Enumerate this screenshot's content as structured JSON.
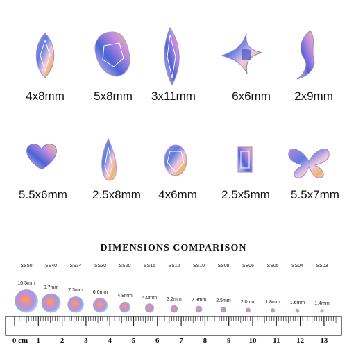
{
  "gems_row1": [
    {
      "shape": "navette-icon",
      "label": "4x8mm"
    },
    {
      "shape": "pear-icon",
      "label": "5x8mm"
    },
    {
      "shape": "long-navette-icon",
      "label": "3x11mm"
    },
    {
      "shape": "star-icon",
      "label": "6x6mm"
    },
    {
      "shape": "wave-icon",
      "label": "2x9mm"
    }
  ],
  "gems_row2": [
    {
      "shape": "heart-icon",
      "label": "5.5x6mm"
    },
    {
      "shape": "teardrop-icon",
      "label": "2.5x8mm"
    },
    {
      "shape": "oval-icon",
      "label": "4x6mm"
    },
    {
      "shape": "baguette-icon",
      "label": "2.5x5mm"
    },
    {
      "shape": "butterfly-icon",
      "label": "5.5x7mm"
    }
  ],
  "comparison": {
    "title": "DIMENSIONS COMPARISON",
    "ss_sizes": [
      "SS50",
      "SS40",
      "SS34",
      "SS30",
      "SS20",
      "SS16",
      "SS12",
      "SS10",
      "SS08",
      "SS06",
      "SS05",
      "SS04",
      "SS03"
    ],
    "mm_sizes": [
      "10.5mm",
      "8.7mm",
      "7.3mm",
      "6.6mm",
      "4.8mm",
      "4.0mm",
      "3.2mm",
      "2.9mm",
      "2.5mm",
      "2.0mm",
      "1.8mm",
      "1.6mm",
      "1.4mm"
    ],
    "diameters_mm": [
      10.5,
      8.7,
      7.3,
      6.6,
      4.8,
      4.0,
      3.2,
      2.9,
      2.5,
      2.0,
      1.8,
      1.6,
      1.4
    ]
  },
  "ruler": {
    "unit": "cm",
    "labels": [
      "0 cm",
      "1",
      "2",
      "3",
      "4",
      "5",
      "6",
      "7",
      "8",
      "9",
      "10",
      "11",
      "12",
      "13"
    ]
  },
  "colors": {
    "gem_purple": "#8a5cc7",
    "gem_blue": "#3d6bd6",
    "gem_orange": "#e8a24a",
    "gem_pink": "#e6a3c8",
    "text": "#111111"
  }
}
